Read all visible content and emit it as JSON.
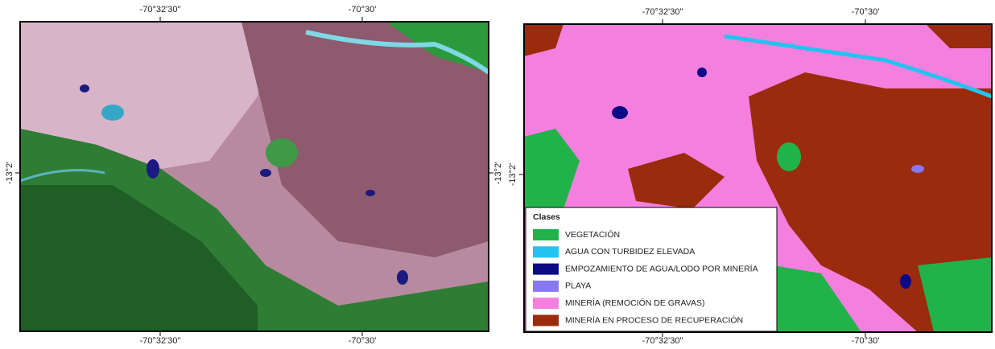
{
  "maps": [
    {
      "top_labels": [
        "-70°32'30\"",
        "-70°30'"
      ],
      "bottom_labels": [
        "-70°32'30\"",
        "-70°30'"
      ],
      "left_label": "-13°2'",
      "right_label": "-13°2'"
    },
    {
      "top_labels": [
        "-70°32'30\"",
        "-70°30'"
      ],
      "bottom_labels": [
        "-70°32'30\"",
        "-70°30'"
      ],
      "left_label": "-13°2'"
    }
  ],
  "legend": {
    "title": "Clases",
    "items": [
      {
        "label": "VEGETACIÓN",
        "color": "#22b24a"
      },
      {
        "label": "AGUA CON TURBIDEZ ELEVADA",
        "color": "#22c4ef"
      },
      {
        "label": "EMPOZAMIENTO DE AGUA/LODO POR MINERÍA",
        "color": "#0b0b86"
      },
      {
        "label": "PLAYA",
        "color": "#8878f2"
      },
      {
        "label": "MINERÍA (REMOCIÓN DE GRAVAS)",
        "color": "#f47fde"
      },
      {
        "label": "MINERÍA EN PROCESO DE RECUPERACIÓN",
        "color": "#9a2b0c"
      }
    ]
  }
}
